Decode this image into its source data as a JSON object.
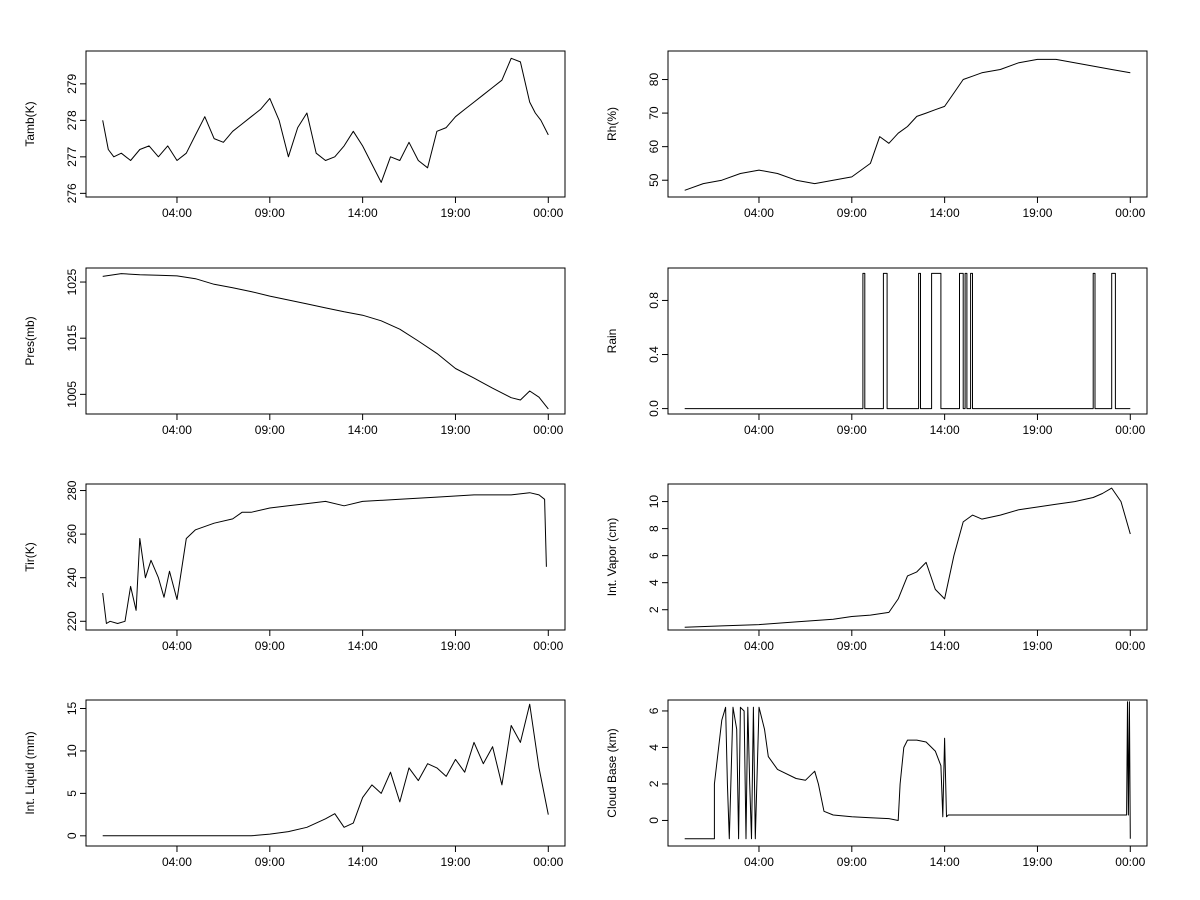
{
  "chart_data": [
    {
      "type": "line",
      "ylabel": "Tamb(K)",
      "xlim": [
        -0.9,
        24.9
      ],
      "xticks": [
        4,
        9,
        14,
        19,
        24
      ],
      "xtick_labels": [
        "04:00",
        "09:00",
        "14:00",
        "19:00",
        "00:00"
      ],
      "ylim": [
        275.9,
        279.9
      ],
      "yticks": [
        276,
        277,
        278,
        279
      ],
      "ytick_labels": [
        "276",
        "277",
        "278",
        "279"
      ],
      "x": [
        0.0,
        0.3,
        0.6,
        1.0,
        1.5,
        2.0,
        2.5,
        3.0,
        3.5,
        4.0,
        4.5,
        5.0,
        5.5,
        6.0,
        6.5,
        7.0,
        7.5,
        8.0,
        8.5,
        9.0,
        9.5,
        10.0,
        10.5,
        11.0,
        11.5,
        12.0,
        12.5,
        13.0,
        13.5,
        14.0,
        14.5,
        15.0,
        15.5,
        16.0,
        16.5,
        17.0,
        17.5,
        18.0,
        18.5,
        19.0,
        19.5,
        20.0,
        20.5,
        21.0,
        21.5,
        22.0,
        22.5,
        23.0,
        23.3,
        23.6,
        24.0
      ],
      "y": [
        278.0,
        277.2,
        277.0,
        277.1,
        276.9,
        277.2,
        277.3,
        277.0,
        277.3,
        276.9,
        277.1,
        277.6,
        278.1,
        277.5,
        277.4,
        277.7,
        277.9,
        278.1,
        278.3,
        278.6,
        278.0,
        277.0,
        277.8,
        278.2,
        277.1,
        276.9,
        277.0,
        277.3,
        277.7,
        277.3,
        276.8,
        276.3,
        277.0,
        276.9,
        277.4,
        276.9,
        276.7,
        277.7,
        277.8,
        278.1,
        278.3,
        278.5,
        278.7,
        278.9,
        279.1,
        279.7,
        279.6,
        278.5,
        278.2,
        278.0,
        277.6
      ]
    },
    {
      "type": "line",
      "ylabel": "Rh(%)",
      "xlim": [
        -0.9,
        24.9
      ],
      "xticks": [
        4,
        9,
        14,
        19,
        24
      ],
      "xtick_labels": [
        "04:00",
        "09:00",
        "14:00",
        "19:00",
        "00:00"
      ],
      "ylim": [
        45,
        88.5
      ],
      "yticks": [
        50,
        60,
        70,
        80
      ],
      "ytick_labels": [
        "50",
        "60",
        "70",
        "80"
      ],
      "x": [
        0.0,
        1.0,
        2.0,
        3.0,
        4.0,
        5.0,
        6.0,
        7.0,
        8.0,
        9.0,
        9.5,
        10.0,
        10.5,
        11.0,
        11.5,
        12.0,
        12.5,
        13.0,
        13.5,
        14.0,
        14.5,
        15.0,
        15.5,
        16.0,
        17.0,
        18.0,
        19.0,
        20.0,
        21.0,
        22.0,
        23.0,
        24.0
      ],
      "y": [
        47,
        49,
        50,
        52,
        53,
        52,
        50,
        49,
        50,
        51,
        53,
        55,
        63,
        61,
        64,
        66,
        69,
        70,
        71,
        72,
        76,
        80,
        81,
        82,
        83,
        85,
        86,
        86,
        85,
        84,
        83,
        82
      ]
    },
    {
      "type": "line",
      "ylabel": "Pres(mb)",
      "xlim": [
        -0.9,
        24.9
      ],
      "xticks": [
        4,
        9,
        14,
        19,
        24
      ],
      "xtick_labels": [
        "04:00",
        "09:00",
        "14:00",
        "19:00",
        "00:00"
      ],
      "ylim": [
        1001.5,
        1027.5
      ],
      "yticks": [
        1005,
        1015,
        1025
      ],
      "ytick_labels": [
        "1005",
        "1015",
        "1025"
      ],
      "x": [
        0.0,
        1.0,
        2.0,
        3.0,
        4.0,
        5.0,
        6.0,
        7.0,
        8.0,
        9.0,
        10.0,
        11.0,
        12.0,
        13.0,
        14.0,
        15.0,
        16.0,
        17.0,
        18.0,
        19.0,
        20.0,
        21.0,
        22.0,
        22.5,
        23.0,
        23.5,
        24.0
      ],
      "y": [
        1026,
        1026.5,
        1026.3,
        1026.2,
        1026.1,
        1025.6,
        1024.6,
        1024,
        1023.3,
        1022.5,
        1021.8,
        1021.1,
        1020.4,
        1019.7,
        1019.1,
        1018.1,
        1016.6,
        1014.5,
        1012.3,
        1009.6,
        1007.9,
        1006.1,
        1004.4,
        1004,
        1005.6,
        1004.5,
        1002.4
      ]
    },
    {
      "type": "line",
      "ylabel": "Rain",
      "xlim": [
        -0.9,
        24.9
      ],
      "xticks": [
        4,
        9,
        14,
        19,
        24
      ],
      "xtick_labels": [
        "04:00",
        "09:00",
        "14:00",
        "19:00",
        "00:00"
      ],
      "ylim": [
        -0.04,
        1.04
      ],
      "yticks": [
        0.0,
        0.4,
        0.8
      ],
      "ytick_labels": [
        "0.0",
        "0.4",
        "0.8"
      ],
      "x": [
        0.0,
        9.6,
        9.6,
        9.7,
        9.7,
        10.7,
        10.7,
        10.9,
        10.9,
        12.6,
        12.6,
        12.7,
        12.7,
        13.3,
        13.3,
        13.8,
        13.8,
        14.8,
        14.8,
        15.0,
        15.0,
        15.1,
        15.1,
        15.2,
        15.2,
        15.4,
        15.4,
        15.5,
        15.5,
        22.0,
        22.0,
        22.1,
        22.1,
        23.0,
        23.0,
        23.2,
        23.2,
        24.0
      ],
      "y": [
        0,
        0,
        1,
        1,
        0,
        0,
        1,
        1,
        0,
        0,
        1,
        1,
        0,
        0,
        1,
        1,
        0,
        0,
        1,
        1,
        0,
        0,
        1,
        1,
        0,
        0,
        1,
        1,
        0,
        0,
        1,
        1,
        0,
        0,
        1,
        1,
        0,
        0
      ]
    },
    {
      "type": "line",
      "ylabel": "Tir(K)",
      "xlim": [
        -0.9,
        24.9
      ],
      "xticks": [
        4,
        9,
        14,
        19,
        24
      ],
      "xtick_labels": [
        "04:00",
        "09:00",
        "14:00",
        "19:00",
        "00:00"
      ],
      "ylim": [
        216,
        283
      ],
      "yticks": [
        220,
        240,
        260,
        280
      ],
      "ytick_labels": [
        "220",
        "240",
        "260",
        "280"
      ],
      "x": [
        0.0,
        0.2,
        0.4,
        0.8,
        1.2,
        1.5,
        1.8,
        2.0,
        2.3,
        2.6,
        3.0,
        3.3,
        3.6,
        4.0,
        4.5,
        5.0,
        6.0,
        7.0,
        7.5,
        8.0,
        9.0,
        10.0,
        11.0,
        12.0,
        13.0,
        14.0,
        16.0,
        18.0,
        20.0,
        22.0,
        23.0,
        23.5,
        23.8,
        23.9
      ],
      "y": [
        233,
        219,
        220,
        219,
        220,
        236,
        225,
        258,
        240,
        248,
        240,
        231,
        243,
        230,
        258,
        262,
        265,
        267,
        270,
        270,
        272,
        273,
        274,
        275,
        273,
        275,
        276,
        277,
        278,
        278,
        279,
        278,
        276,
        245
      ]
    },
    {
      "type": "line",
      "ylabel": "Int. Vapor (cm)",
      "xlim": [
        -0.9,
        24.9
      ],
      "xticks": [
        4,
        9,
        14,
        19,
        24
      ],
      "xtick_labels": [
        "04:00",
        "09:00",
        "14:00",
        "19:00",
        "00:00"
      ],
      "ylim": [
        0.5,
        11.3
      ],
      "yticks": [
        2,
        4,
        6,
        8,
        10
      ],
      "ytick_labels": [
        "2",
        "4",
        "6",
        "8",
        "10"
      ],
      "x": [
        0.0,
        2.0,
        4.0,
        6.0,
        8.0,
        9.0,
        10.0,
        11.0,
        11.5,
        12.0,
        12.5,
        13.0,
        13.5,
        14.0,
        14.5,
        15.0,
        15.5,
        16.0,
        17.0,
        18.0,
        19.0,
        20.0,
        21.0,
        22.0,
        22.5,
        23.0,
        23.5,
        24.0
      ],
      "y": [
        0.7,
        0.8,
        0.9,
        1.1,
        1.3,
        1.5,
        1.6,
        1.8,
        2.8,
        4.5,
        4.8,
        5.5,
        3.5,
        2.8,
        6.0,
        8.5,
        9.0,
        8.7,
        9.0,
        9.4,
        9.6,
        9.8,
        10.0,
        10.3,
        10.6,
        11.0,
        10.0,
        7.6
      ]
    },
    {
      "type": "line",
      "ylabel": "Int. Liquid (mm)",
      "xlim": [
        -0.9,
        24.9
      ],
      "xticks": [
        4,
        9,
        14,
        19,
        24
      ],
      "xtick_labels": [
        "04:00",
        "09:00",
        "14:00",
        "19:00",
        "00:00"
      ],
      "ylim": [
        -1.2,
        16
      ],
      "yticks": [
        0,
        5,
        10,
        15
      ],
      "ytick_labels": [
        "0",
        "5",
        "10",
        "15"
      ],
      "x": [
        0.0,
        4.0,
        8.0,
        9.0,
        10.0,
        11.0,
        12.0,
        12.5,
        13.0,
        13.5,
        14.0,
        14.5,
        15.0,
        15.5,
        16.0,
        16.5,
        17.0,
        17.5,
        18.0,
        18.5,
        19.0,
        19.5,
        20.0,
        20.5,
        21.0,
        21.5,
        22.0,
        22.5,
        23.0,
        23.5,
        24.0
      ],
      "y": [
        0,
        0,
        0,
        0.2,
        0.5,
        1.0,
        2.0,
        2.6,
        1.0,
        1.5,
        4.5,
        6.0,
        5.0,
        7.5,
        4.0,
        8.0,
        6.5,
        8.5,
        8.0,
        7.0,
        9.0,
        7.5,
        11.0,
        8.5,
        10.5,
        6.0,
        13.0,
        11.0,
        15.5,
        8.0,
        2.5
      ]
    },
    {
      "type": "line",
      "ylabel": "Cloud Base (km)",
      "xlim": [
        -0.9,
        24.9
      ],
      "xticks": [
        4,
        9,
        14,
        19,
        24
      ],
      "xtick_labels": [
        "04:00",
        "09:00",
        "14:00",
        "19:00",
        "00:00"
      ],
      "ylim": [
        -1.4,
        6.6
      ],
      "yticks": [
        0,
        2,
        4,
        6
      ],
      "ytick_labels": [
        "0",
        "2",
        "4",
        "6"
      ],
      "x": [
        0.0,
        1.6,
        1.6,
        2.0,
        2.2,
        2.3,
        2.4,
        2.6,
        2.8,
        2.9,
        3.0,
        3.2,
        3.3,
        3.4,
        3.5,
        3.6,
        3.7,
        3.8,
        4.0,
        4.3,
        4.5,
        5.0,
        6.0,
        6.5,
        7.0,
        7.2,
        7.5,
        8.0,
        9.0,
        10.0,
        11.0,
        11.5,
        11.6,
        11.8,
        12.0,
        12.5,
        13.0,
        13.5,
        13.8,
        13.9,
        14.0,
        14.1,
        14.2,
        16.0,
        18.0,
        20.0,
        22.0,
        23.0,
        23.8,
        23.85,
        23.9,
        23.95,
        24.0
      ],
      "y": [
        -1,
        -1,
        2,
        5.5,
        6.2,
        2,
        -1,
        6.2,
        5,
        -1,
        6.2,
        6,
        -1,
        6.2,
        2,
        -1,
        6.2,
        -1,
        6.2,
        5,
        3.5,
        2.8,
        2.3,
        2.2,
        2.7,
        2.0,
        0.5,
        0.3,
        0.2,
        0.15,
        0.1,
        0.0,
        2.0,
        4.0,
        4.4,
        4.4,
        4.3,
        3.8,
        3.0,
        0.2,
        4.5,
        0.2,
        0.3,
        0.3,
        0.3,
        0.3,
        0.3,
        0.3,
        0.3,
        6.5,
        0.3,
        6.5,
        -1
      ]
    }
  ]
}
